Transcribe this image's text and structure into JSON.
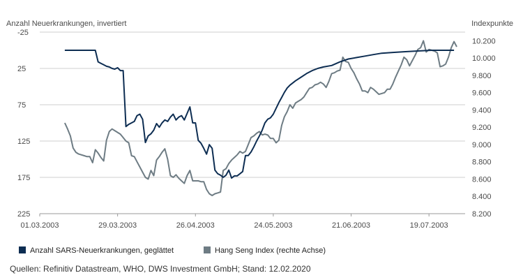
{
  "chart_data": {
    "type": "line",
    "left_axis_title": "Anzahl Neuerkrankungen, invertiert",
    "right_axis_title": "Indexpunkte",
    "left_axis": {
      "inverted": true,
      "range": [
        -25,
        225
      ],
      "ticks": [
        "-25",
        "25",
        "75",
        "125",
        "175",
        "225"
      ]
    },
    "right_axis": {
      "range": [
        8200,
        10300
      ],
      "ticks": [
        "10.200",
        "10.000",
        "9.800",
        "9.600",
        "9.400",
        "9.200",
        "9.000",
        "8.800",
        "8.600",
        "8.400",
        "8.200"
      ],
      "tick_values": [
        10200,
        10000,
        9800,
        9600,
        9400,
        9200,
        9000,
        8800,
        8600,
        8400,
        8200
      ]
    },
    "x_range": [
      "2003-03-01",
      "2003-08-01"
    ],
    "x_ticks": [
      {
        "date": "2003-03-01",
        "label": "01.03.2003"
      },
      {
        "date": "2003-03-29",
        "label": "29.03.2003"
      },
      {
        "date": "2003-04-26",
        "label": "26.04.2003"
      },
      {
        "date": "2003-05-24",
        "label": "24.05.2003"
      },
      {
        "date": "2003-06-21",
        "label": "21.06.2003"
      },
      {
        "date": "2003-07-19",
        "label": "19.07.2003"
      }
    ],
    "grid": "horizontal",
    "legend_position": "bottom",
    "series": [
      {
        "name": "Anzahl SARS-Neuerkrankungen, geglättet",
        "axis": "left",
        "color": "#0d2d52",
        "points": [
          [
            "2003-03-10",
            0
          ],
          [
            "2003-03-21",
            0
          ],
          [
            "2003-03-22",
            16
          ],
          [
            "2003-03-23",
            18
          ],
          [
            "2003-03-24",
            20
          ],
          [
            "2003-03-25",
            22
          ],
          [
            "2003-03-26",
            23
          ],
          [
            "2003-03-27",
            25
          ],
          [
            "2003-03-28",
            26
          ],
          [
            "2003-03-29",
            24
          ],
          [
            "2003-03-30",
            28
          ],
          [
            "2003-03-31",
            28
          ],
          [
            "2003-04-01",
            105
          ],
          [
            "2003-04-02",
            102
          ],
          [
            "2003-04-03",
            100
          ],
          [
            "2003-04-04",
            98
          ],
          [
            "2003-04-05",
            90
          ],
          [
            "2003-04-06",
            88
          ],
          [
            "2003-04-07",
            95
          ],
          [
            "2003-04-08",
            127
          ],
          [
            "2003-04-09",
            118
          ],
          [
            "2003-04-10",
            115
          ],
          [
            "2003-04-11",
            110
          ],
          [
            "2003-04-12",
            101
          ],
          [
            "2003-04-13",
            106
          ],
          [
            "2003-04-14",
            100
          ],
          [
            "2003-04-15",
            96
          ],
          [
            "2003-04-16",
            98
          ],
          [
            "2003-04-17",
            92
          ],
          [
            "2003-04-18",
            88
          ],
          [
            "2003-04-19",
            96
          ],
          [
            "2003-04-20",
            92
          ],
          [
            "2003-04-21",
            90
          ],
          [
            "2003-04-22",
            96
          ],
          [
            "2003-04-23",
            87
          ],
          [
            "2003-04-24",
            78
          ],
          [
            "2003-04-25",
            100
          ],
          [
            "2003-04-26",
            100
          ],
          [
            "2003-04-27",
            124
          ],
          [
            "2003-04-28",
            128
          ],
          [
            "2003-04-29",
            135
          ],
          [
            "2003-04-30",
            143
          ],
          [
            "2003-05-01",
            130
          ],
          [
            "2003-05-02",
            135
          ],
          [
            "2003-05-03",
            165
          ],
          [
            "2003-05-04",
            170
          ],
          [
            "2003-05-05",
            172
          ],
          [
            "2003-05-06",
            175
          ],
          [
            "2003-05-07",
            172
          ],
          [
            "2003-05-08",
            165
          ],
          [
            "2003-05-09",
            176
          ],
          [
            "2003-05-10",
            173
          ],
          [
            "2003-05-11",
            173
          ],
          [
            "2003-05-12",
            170
          ],
          [
            "2003-05-13",
            167
          ],
          [
            "2003-05-14",
            145
          ],
          [
            "2003-05-15",
            145
          ],
          [
            "2003-05-16",
            140
          ],
          [
            "2003-05-17",
            133
          ],
          [
            "2003-05-18",
            125
          ],
          [
            "2003-05-19",
            118
          ],
          [
            "2003-05-20",
            110
          ],
          [
            "2003-05-21",
            100
          ],
          [
            "2003-05-22",
            95
          ],
          [
            "2003-05-23",
            93
          ],
          [
            "2003-05-24",
            88
          ],
          [
            "2003-05-25",
            80
          ],
          [
            "2003-05-26",
            72
          ],
          [
            "2003-05-27",
            65
          ],
          [
            "2003-05-28",
            58
          ],
          [
            "2003-05-29",
            52
          ],
          [
            "2003-05-30",
            48
          ],
          [
            "2003-06-01",
            42
          ],
          [
            "2003-06-03",
            37
          ],
          [
            "2003-06-05",
            32
          ],
          [
            "2003-06-07",
            28
          ],
          [
            "2003-06-09",
            25
          ],
          [
            "2003-06-11",
            23
          ],
          [
            "2003-06-14",
            21
          ],
          [
            "2003-06-17",
            16
          ],
          [
            "2003-06-20",
            12
          ],
          [
            "2003-06-23",
            10
          ],
          [
            "2003-06-26",
            8
          ],
          [
            "2003-06-29",
            6
          ],
          [
            "2003-07-02",
            4
          ],
          [
            "2003-07-06",
            3
          ],
          [
            "2003-07-10",
            2
          ],
          [
            "2003-07-15",
            1
          ],
          [
            "2003-07-20",
            0
          ],
          [
            "2003-07-28",
            0
          ]
        ]
      },
      {
        "name": "Hang Seng Index (rechte Achse)",
        "axis": "right",
        "color": "#6e7c84",
        "points": [
          [
            "2003-03-10",
            9250
          ],
          [
            "2003-03-11",
            9180
          ],
          [
            "2003-03-12",
            9100
          ],
          [
            "2003-03-13",
            8960
          ],
          [
            "2003-03-14",
            8910
          ],
          [
            "2003-03-15",
            8890
          ],
          [
            "2003-03-17",
            8870
          ],
          [
            "2003-03-18",
            8860
          ],
          [
            "2003-03-19",
            8860
          ],
          [
            "2003-03-20",
            8790
          ],
          [
            "2003-03-21",
            8940
          ],
          [
            "2003-03-22",
            8900
          ],
          [
            "2003-03-23",
            8850
          ],
          [
            "2003-03-24",
            8810
          ],
          [
            "2003-03-25",
            9050
          ],
          [
            "2003-03-26",
            9150
          ],
          [
            "2003-03-27",
            9180
          ],
          [
            "2003-03-28",
            9160
          ],
          [
            "2003-03-29",
            9140
          ],
          [
            "2003-03-30",
            9120
          ],
          [
            "2003-03-31",
            9080
          ],
          [
            "2003-04-01",
            9040
          ],
          [
            "2003-04-02",
            9020
          ],
          [
            "2003-04-03",
            8870
          ],
          [
            "2003-04-04",
            8860
          ],
          [
            "2003-04-05",
            8800
          ],
          [
            "2003-04-06",
            8740
          ],
          [
            "2003-04-07",
            8680
          ],
          [
            "2003-04-08",
            8620
          ],
          [
            "2003-04-09",
            8600
          ],
          [
            "2003-04-10",
            8700
          ],
          [
            "2003-04-11",
            8640
          ],
          [
            "2003-04-12",
            8820
          ],
          [
            "2003-04-13",
            8860
          ],
          [
            "2003-04-14",
            8910
          ],
          [
            "2003-04-15",
            8950
          ],
          [
            "2003-04-16",
            8830
          ],
          [
            "2003-04-17",
            8640
          ],
          [
            "2003-04-18",
            8620
          ],
          [
            "2003-04-19",
            8650
          ],
          [
            "2003-04-20",
            8610
          ],
          [
            "2003-04-21",
            8580
          ],
          [
            "2003-04-22",
            8550
          ],
          [
            "2003-04-23",
            8640
          ],
          [
            "2003-04-24",
            8700
          ],
          [
            "2003-04-25",
            8580
          ],
          [
            "2003-04-26",
            8580
          ],
          [
            "2003-04-27",
            8580
          ],
          [
            "2003-04-28",
            8570
          ],
          [
            "2003-04-29",
            8570
          ],
          [
            "2003-04-30",
            8480
          ],
          [
            "2003-05-01",
            8430
          ],
          [
            "2003-05-02",
            8410
          ],
          [
            "2003-05-03",
            8430
          ],
          [
            "2003-05-04",
            8440
          ],
          [
            "2003-05-05",
            8450
          ],
          [
            "2003-05-06",
            8700
          ],
          [
            "2003-05-07",
            8720
          ],
          [
            "2003-05-08",
            8780
          ],
          [
            "2003-05-09",
            8820
          ],
          [
            "2003-05-10",
            8850
          ],
          [
            "2003-05-11",
            8880
          ],
          [
            "2003-05-12",
            8920
          ],
          [
            "2003-05-13",
            8900
          ],
          [
            "2003-05-14",
            8920
          ],
          [
            "2003-05-15",
            9000
          ],
          [
            "2003-05-16",
            9080
          ],
          [
            "2003-05-17",
            9100
          ],
          [
            "2003-05-18",
            9130
          ],
          [
            "2003-05-19",
            9150
          ],
          [
            "2003-05-20",
            9110
          ],
          [
            "2003-05-21",
            9120
          ],
          [
            "2003-05-22",
            9110
          ],
          [
            "2003-05-23",
            9070
          ],
          [
            "2003-05-24",
            9070
          ],
          [
            "2003-05-25",
            9020
          ],
          [
            "2003-05-26",
            9050
          ],
          [
            "2003-05-27",
            9220
          ],
          [
            "2003-05-28",
            9320
          ],
          [
            "2003-05-29",
            9380
          ],
          [
            "2003-05-30",
            9460
          ],
          [
            "2003-05-31",
            9420
          ],
          [
            "2003-06-01",
            9480
          ],
          [
            "2003-06-02",
            9500
          ],
          [
            "2003-06-03",
            9520
          ],
          [
            "2003-06-04",
            9550
          ],
          [
            "2003-06-05",
            9600
          ],
          [
            "2003-06-06",
            9650
          ],
          [
            "2003-06-07",
            9660
          ],
          [
            "2003-06-08",
            9690
          ],
          [
            "2003-06-09",
            9700
          ],
          [
            "2003-06-10",
            9720
          ],
          [
            "2003-06-11",
            9700
          ],
          [
            "2003-06-12",
            9660
          ],
          [
            "2003-06-13",
            9730
          ],
          [
            "2003-06-14",
            9820
          ],
          [
            "2003-06-15",
            9830
          ],
          [
            "2003-06-16",
            9850
          ],
          [
            "2003-06-17",
            9860
          ],
          [
            "2003-06-18",
            10010
          ],
          [
            "2003-06-19",
            9960
          ],
          [
            "2003-06-20",
            9950
          ],
          [
            "2003-06-21",
            9880
          ],
          [
            "2003-06-22",
            9830
          ],
          [
            "2003-06-23",
            9760
          ],
          [
            "2003-06-24",
            9700
          ],
          [
            "2003-06-25",
            9620
          ],
          [
            "2003-06-26",
            9620
          ],
          [
            "2003-06-27",
            9600
          ],
          [
            "2003-06-28",
            9660
          ],
          [
            "2003-06-29",
            9640
          ],
          [
            "2003-06-30",
            9610
          ],
          [
            "2003-07-01",
            9580
          ],
          [
            "2003-07-02",
            9590
          ],
          [
            "2003-07-03",
            9600
          ],
          [
            "2003-07-04",
            9640
          ],
          [
            "2003-07-05",
            9640
          ],
          [
            "2003-07-06",
            9700
          ],
          [
            "2003-07-07",
            9780
          ],
          [
            "2003-07-08",
            9850
          ],
          [
            "2003-07-09",
            9920
          ],
          [
            "2003-07-10",
            10010
          ],
          [
            "2003-07-11",
            9980
          ],
          [
            "2003-07-12",
            9910
          ],
          [
            "2003-07-13",
            9970
          ],
          [
            "2003-07-14",
            10030
          ],
          [
            "2003-07-15",
            10100
          ],
          [
            "2003-07-16",
            10120
          ],
          [
            "2003-07-17",
            10200
          ],
          [
            "2003-07-18",
            10070
          ],
          [
            "2003-07-19",
            10100
          ],
          [
            "2003-07-20",
            10090
          ],
          [
            "2003-07-21",
            10080
          ],
          [
            "2003-07-22",
            10060
          ],
          [
            "2003-07-23",
            9900
          ],
          [
            "2003-07-24",
            9910
          ],
          [
            "2003-07-25",
            9930
          ],
          [
            "2003-07-26",
            10010
          ],
          [
            "2003-07-27",
            10120
          ],
          [
            "2003-07-28",
            10190
          ],
          [
            "2003-07-29",
            10130
          ]
        ]
      }
    ]
  },
  "source_note": "Quellen: Refinitiv Datastream, WHO, DWS Investment GmbH; Stand: 12.02.2020"
}
